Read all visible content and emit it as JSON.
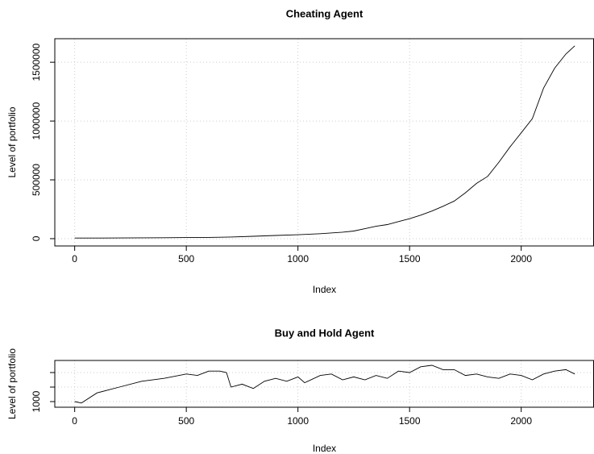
{
  "chart_data": [
    {
      "type": "line",
      "title": "Cheating Agent",
      "x_label": "Index",
      "y_label": "Level of portfolio",
      "x": [
        0,
        100,
        200,
        300,
        400,
        500,
        600,
        700,
        800,
        900,
        1000,
        1100,
        1200,
        1250,
        1300,
        1350,
        1400,
        1450,
        1500,
        1550,
        1600,
        1650,
        1700,
        1750,
        1800,
        1850,
        1900,
        1950,
        2000,
        2050,
        2100,
        2150,
        2200,
        2240
      ],
      "values": [
        5000,
        5500,
        6000,
        7000,
        8000,
        9000,
        11000,
        14000,
        20000,
        27000,
        33000,
        42000,
        55000,
        65000,
        85000,
        105000,
        120000,
        145000,
        170000,
        200000,
        235000,
        275000,
        320000,
        390000,
        470000,
        530000,
        650000,
        780000,
        900000,
        1020000,
        1280000,
        1450000,
        1570000,
        1640000
      ],
      "color": "#000000",
      "xlim": [
        -89,
        2326
      ],
      "xticks": [
        0,
        500,
        1000,
        1500,
        2000
      ],
      "ylim": [
        -62000,
        1700000
      ],
      "yticks": [
        0,
        500000,
        1000000,
        1500000
      ],
      "grid": true
    },
    {
      "type": "line",
      "title": "Buy and Hold Agent",
      "x_label": "Index",
      "y_label": "Level of portfolio",
      "x": [
        0,
        30,
        100,
        200,
        300,
        400,
        500,
        550,
        600,
        650,
        680,
        700,
        750,
        800,
        850,
        900,
        950,
        1000,
        1030,
        1100,
        1150,
        1200,
        1250,
        1300,
        1350,
        1400,
        1450,
        1500,
        1550,
        1600,
        1650,
        1700,
        1750,
        1800,
        1850,
        1900,
        1950,
        2000,
        2050,
        2100,
        2150,
        2200,
        2240
      ],
      "values": [
        1000,
        950,
        1300,
        1500,
        1700,
        1800,
        1950,
        1900,
        2050,
        2050,
        2000,
        1500,
        1600,
        1450,
        1700,
        1800,
        1700,
        1850,
        1650,
        1900,
        1950,
        1750,
        1850,
        1750,
        1900,
        1800,
        2050,
        2000,
        2200,
        2250,
        2100,
        2100,
        1900,
        1950,
        1850,
        1800,
        1950,
        1900,
        1750,
        1950,
        2050,
        2100,
        1950
      ],
      "color": "#000000",
      "xlim": [
        -89,
        2326
      ],
      "xticks": [
        0,
        500,
        1000,
        1500,
        2000
      ],
      "ylim": [
        806,
        2417
      ],
      "yticks": [
        1000,
        {
          "value": 1500,
          "label": null
        },
        {
          "value": 2000,
          "label": null
        }
      ],
      "grid": true
    }
  ]
}
